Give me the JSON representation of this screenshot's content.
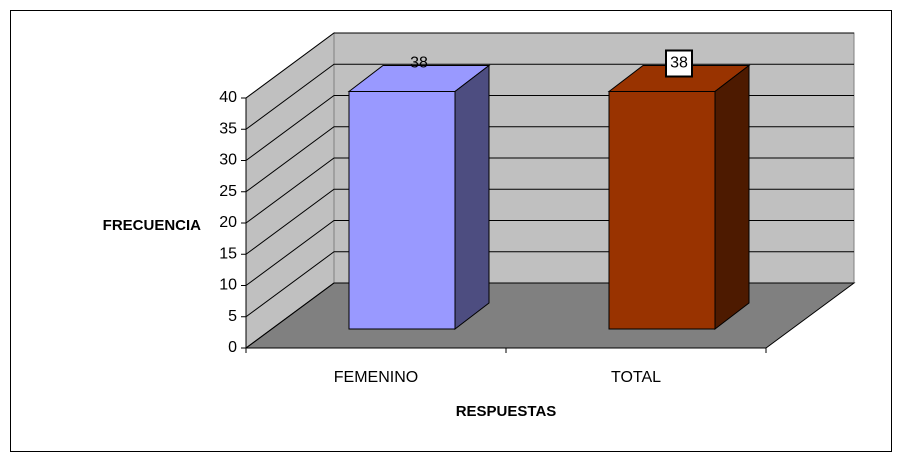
{
  "chart_data": {
    "type": "bar3d",
    "categories": [
      "FEMENINO",
      "TOTAL"
    ],
    "series": [
      {
        "name": null,
        "values": [
          38,
          38
        ]
      }
    ],
    "colors": [
      "#9999ff",
      "#993300"
    ],
    "xlabel": "RESPUESTAS",
    "ylabel": "FRECUENCIA",
    "ylim": [
      0,
      40
    ],
    "yticks": [
      0,
      5,
      10,
      15,
      20,
      25,
      30,
      35,
      40
    ],
    "grid": true
  }
}
